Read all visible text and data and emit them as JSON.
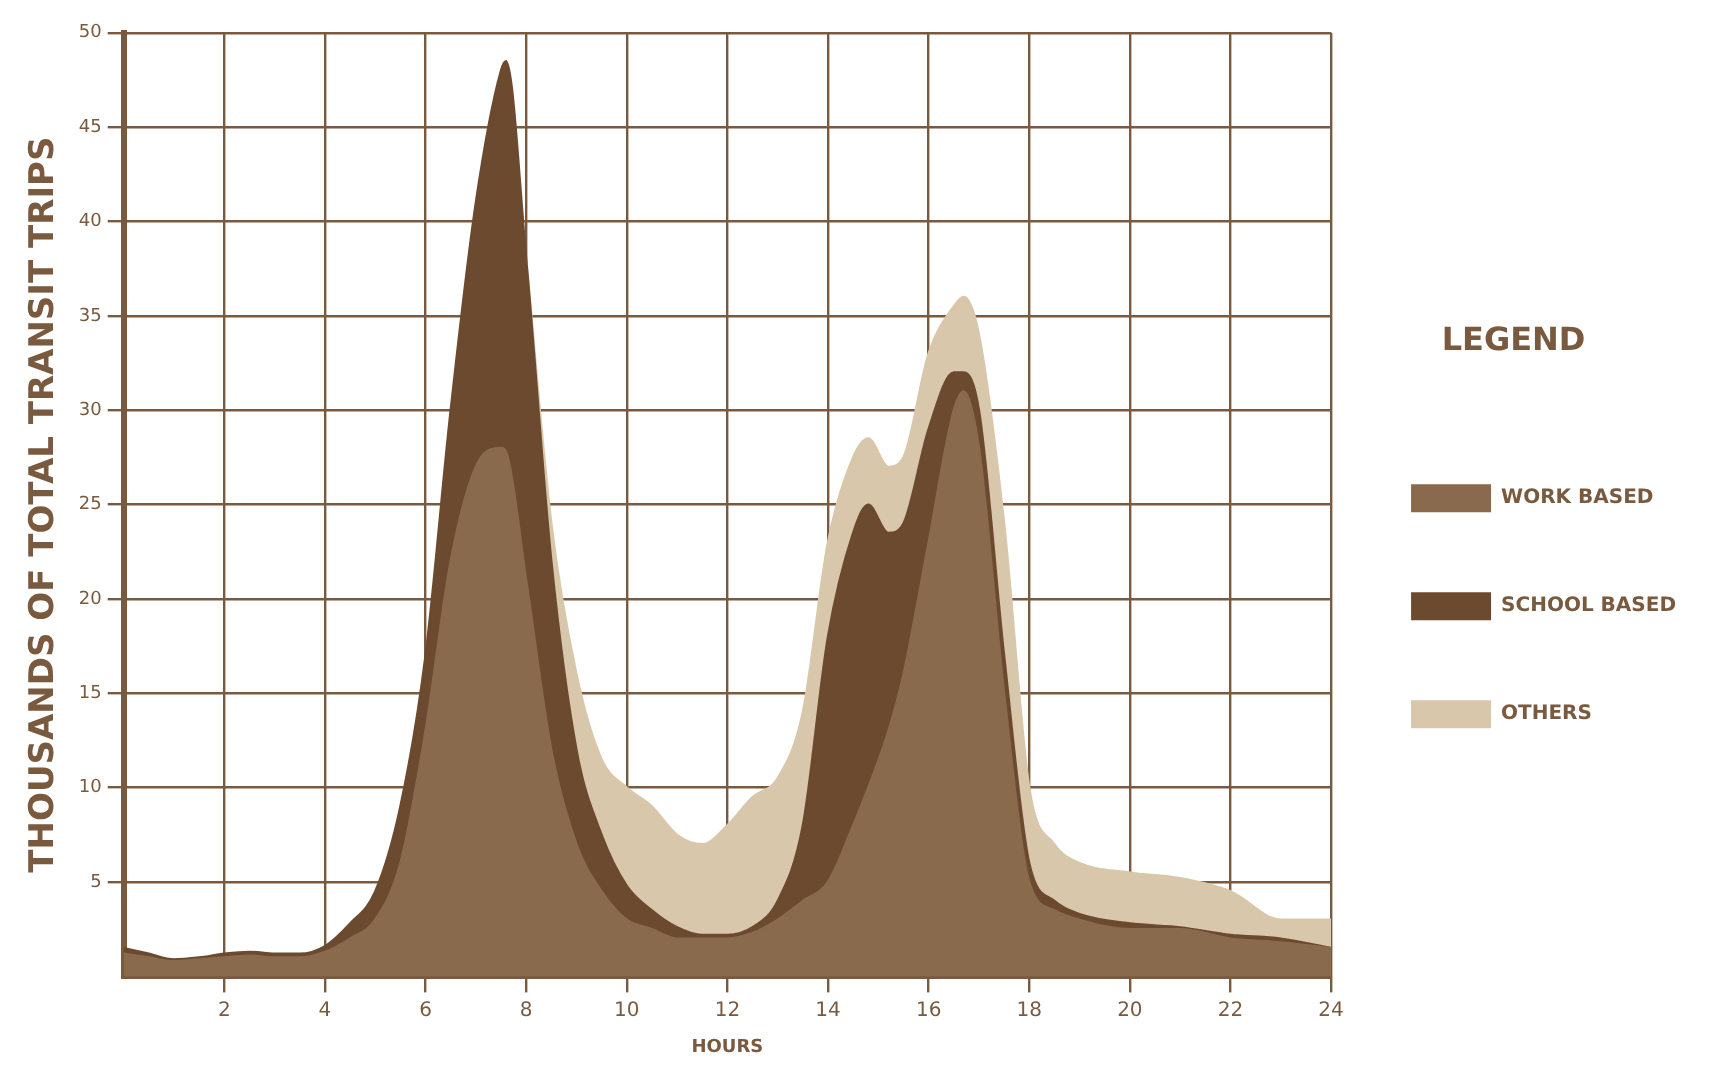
{
  "chart_data": {
    "type": "area",
    "stacked": true,
    "xlabel": "HOURS",
    "ylabel": "THOUSANDS OF TOTAL TRANSIT TRIPS",
    "legend_title": "LEGEND",
    "legend": "right",
    "grid": true,
    "x": [
      0,
      0.5,
      1,
      1.5,
      2,
      2.5,
      3,
      3.5,
      4,
      4.5,
      5,
      5.5,
      6,
      6.5,
      7,
      7.5,
      7.6,
      8,
      8.5,
      9,
      9.5,
      10,
      10.5,
      11,
      11.5,
      12,
      12.5,
      13,
      13.5,
      14,
      14.5,
      14.8,
      15.2,
      15.5,
      16,
      16.5,
      16.7,
      17,
      17.5,
      18,
      18.5,
      19,
      20,
      21,
      22,
      23,
      24
    ],
    "xlim": [
      0,
      24
    ],
    "xticks": [
      2,
      4,
      6,
      8,
      10,
      12,
      14,
      16,
      18,
      20,
      22,
      24
    ],
    "ylim": [
      0,
      50
    ],
    "yticks": [
      5,
      10,
      15,
      20,
      25,
      30,
      35,
      40,
      45,
      50
    ],
    "series": [
      {
        "name": "WORK BASED",
        "color": "#8a6a4c",
        "values": [
          1.2,
          1,
          0.8,
          0.9,
          1,
          1.1,
          1,
          1,
          1.3,
          2,
          3,
          6,
          13,
          22,
          27,
          28,
          27.8,
          21,
          12,
          7,
          4.5,
          3,
          2.5,
          2,
          2,
          2,
          2.3,
          3,
          4,
          5,
          8,
          10,
          13,
          16,
          23,
          30,
          31,
          28,
          15,
          5,
          3.5,
          3,
          2.5,
          2.5,
          2,
          1.8,
          1.5
        ]
      },
      {
        "name": "SCHOOL BASED",
        "color": "#6b4a30",
        "values": [
          0.3,
          0.2,
          0.1,
          0.1,
          0.2,
          0.2,
          0.2,
          0.2,
          0.3,
          0.8,
          1.5,
          3,
          4,
          8,
          14,
          20,
          20.7,
          17,
          10,
          5,
          3,
          1.8,
          1,
          0.6,
          0.2,
          0.2,
          0.3,
          1,
          4,
          13,
          15.5,
          15,
          10.5,
          8,
          6,
          2,
          1,
          2,
          2,
          1,
          0.5,
          0.3,
          0.3,
          0.1,
          0.2,
          0.2,
          0
        ]
      },
      {
        "name": "OTHERS",
        "color": "#d9c7ab",
        "values": [
          null,
          null,
          null,
          null,
          null,
          null,
          null,
          null,
          null,
          null,
          null,
          null,
          null,
          null,
          null,
          null,
          null,
          0,
          2,
          4,
          4,
          5.2,
          5.5,
          4.9,
          4.8,
          5.8,
          6.9,
          6.5,
          6,
          5,
          4,
          3.5,
          3.5,
          3.5,
          4,
          3.5,
          4,
          4,
          7,
          4,
          3,
          2.7,
          2.7,
          2.6,
          2.3,
          1,
          1.5
        ]
      }
    ]
  }
}
